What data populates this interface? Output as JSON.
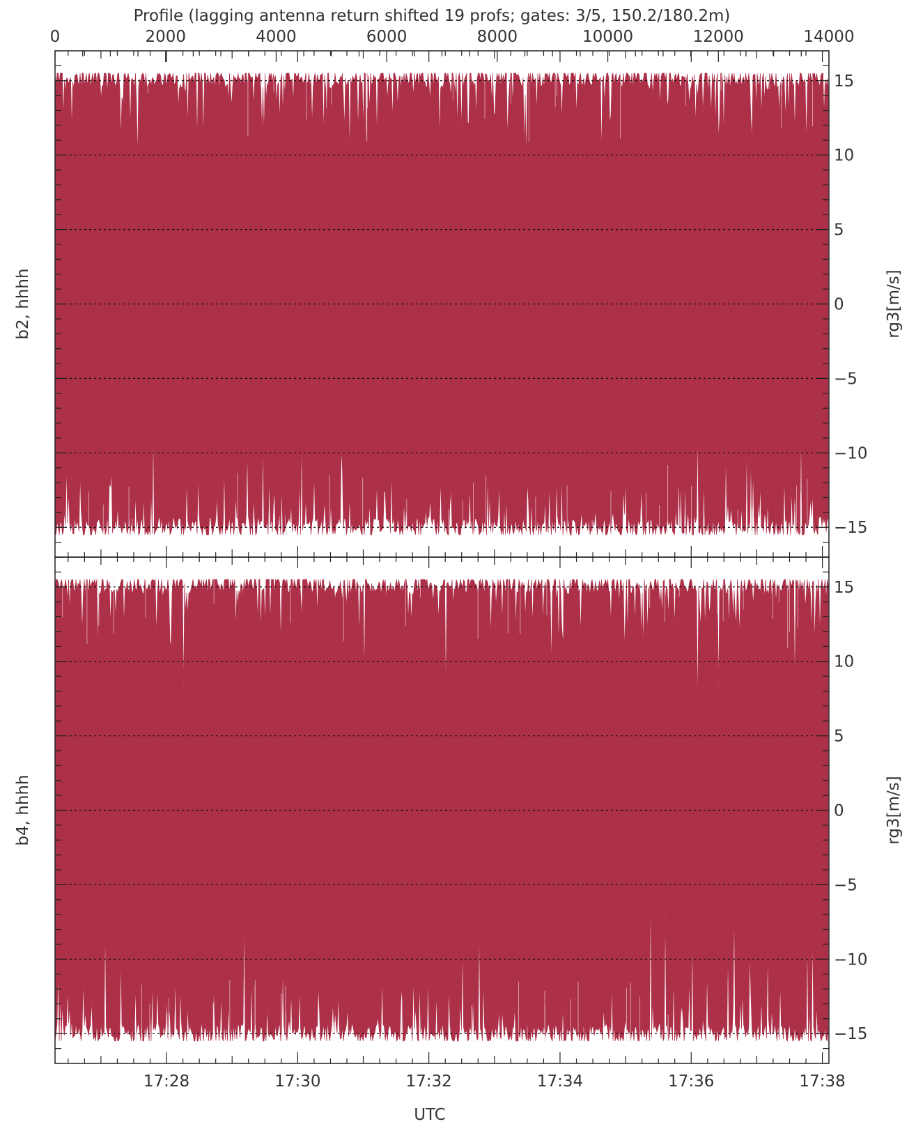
{
  "chart_data": {
    "type": "area",
    "title": "Profile (lagging antenna return shifted 19 profs; gates: 3/5, 150.2/180.2m)",
    "top_axis": {
      "range": [
        0,
        14000
      ],
      "ticks": [
        0,
        2000,
        4000,
        6000,
        8000,
        10000,
        12000,
        14000
      ],
      "tick_labels": [
        "0",
        "2000",
        "4000",
        "6000",
        "8000",
        "10000",
        "12000",
        "14000"
      ]
    },
    "x_axis": {
      "label": "UTC",
      "range_minutes": [
        1046.3,
        1058.1
      ],
      "ticks": [
        "17:28",
        "17:30",
        "17:32",
        "17:34",
        "17:36",
        "17:38"
      ]
    },
    "series_color": "#ad3049",
    "grid": "dotted horizontal at major ticks",
    "panels": [
      {
        "left_label": "b2, hhhh",
        "right_label": "rg3[m/s]",
        "ylim": [
          -17,
          17
        ],
        "yticks": [
          -15,
          -10,
          -5,
          0,
          5,
          10,
          15
        ],
        "ytick_labels": [
          "−15",
          "−10",
          "−5",
          "0",
          "5",
          "10",
          "15"
        ],
        "envelope": {
          "upper_typical": 15.2,
          "lower_typical": -15.0,
          "spread": 15.5
        }
      },
      {
        "left_label": "b4, hhhh",
        "right_label": "rg3[m/s]",
        "ylim": [
          -17,
          17
        ],
        "yticks": [
          -15,
          -10,
          -5,
          0,
          5,
          10,
          15
        ],
        "ytick_labels": [
          "−15",
          "−10",
          "−5",
          "0",
          "5",
          "10",
          "15"
        ],
        "envelope": {
          "upper_typical": 15.2,
          "lower_typical": -15.0,
          "spread": 15.5
        }
      }
    ]
  }
}
